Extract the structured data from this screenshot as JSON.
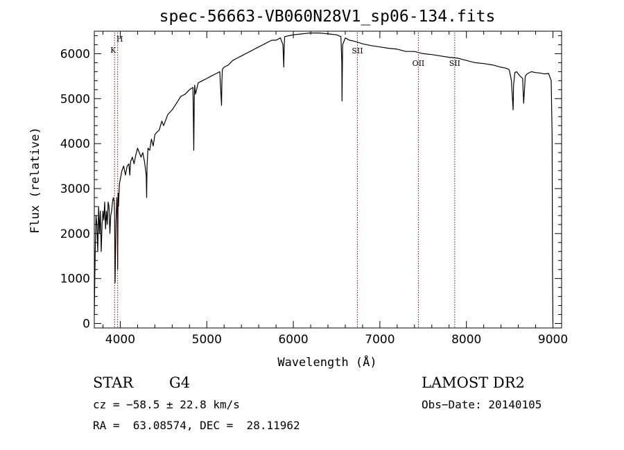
{
  "chart_data": {
    "type": "line",
    "title": "spec-56663-VB060N28V1_sp06-134.fits",
    "xlabel": "Wavelength (Å)",
    "ylabel": "Flux (relative)",
    "xlim": [
      3700,
      9100
    ],
    "ylim": [
      -100,
      6500
    ],
    "xticks": [
      4000,
      5000,
      6000,
      7000,
      8000,
      9000
    ],
    "yticks": [
      0,
      1000,
      2000,
      3000,
      4000,
      5000,
      6000
    ],
    "grid": false,
    "series": [
      {
        "x": [
          3700,
          3710,
          3720,
          3730,
          3740,
          3750,
          3760,
          3770,
          3780,
          3790,
          3800,
          3810,
          3820,
          3830,
          3840,
          3850,
          3860,
          3870,
          3880,
          3890,
          3900,
          3910,
          3920,
          3930,
          3935,
          3940,
          3950,
          3960,
          3965,
          3970,
          3975,
          3980,
          3990,
          4000,
          4020,
          4040,
          4060,
          4080,
          4100,
          4110,
          4120,
          4140,
          4160,
          4180,
          4200,
          4220,
          4240,
          4260,
          4280,
          4300,
          4305,
          4310,
          4320,
          4340,
          4360,
          4380,
          4400,
          4420,
          4450,
          4480,
          4500,
          4550,
          4600,
          4650,
          4700,
          4750,
          4800,
          4840,
          4850,
          4855,
          4860,
          4870,
          4900,
          4950,
          5000,
          5050,
          5100,
          5150,
          5170,
          5175,
          5180,
          5200,
          5250,
          5300,
          5350,
          5400,
          5450,
          5500,
          5550,
          5600,
          5650,
          5700,
          5750,
          5800,
          5850,
          5880,
          5890,
          5895,
          5900,
          5950,
          6000,
          6050,
          6100,
          6150,
          6200,
          6250,
          6300,
          6350,
          6400,
          6450,
          6500,
          6550,
          6560,
          6563,
          6570,
          6600,
          6650,
          6700,
          6750,
          6800,
          6900,
          7000,
          7100,
          7200,
          7300,
          7400,
          7500,
          7600,
          7700,
          7800,
          7900,
          8000,
          8100,
          8200,
          8300,
          8400,
          8450,
          8490,
          8500,
          8520,
          8540,
          8545,
          8560,
          8580,
          8600,
          8620,
          8650,
          8662,
          8680,
          8700,
          8750,
          8800,
          8850,
          8900,
          8950,
          8980,
          8990,
          8995,
          9000
        ],
        "values": [
          200,
          1500,
          2400,
          2200,
          1600,
          2600,
          2000,
          2500,
          1600,
          2200,
          2500,
          2300,
          2700,
          2100,
          2500,
          2200,
          2700,
          2600,
          2000,
          2400,
          2500,
          2700,
          2800,
          2700,
          2400,
          900,
          2200,
          2800,
          2500,
          1200,
          2900,
          2600,
          3100,
          3200,
          3400,
          3500,
          3300,
          3500,
          3550,
          3300,
          3600,
          3700,
          3550,
          3750,
          3900,
          3800,
          3700,
          3800,
          3600,
          3300,
          2800,
          3500,
          3900,
          3850,
          4100,
          3950,
          4200,
          4250,
          4300,
          4500,
          4400,
          4650,
          4750,
          4900,
          5050,
          5100,
          5200,
          5250,
          3850,
          5000,
          5300,
          5100,
          5350,
          5400,
          5450,
          5500,
          5550,
          5600,
          4850,
          5400,
          5650,
          5700,
          5750,
          5850,
          5900,
          5950,
          6000,
          6050,
          6100,
          6150,
          6200,
          6250,
          6300,
          6300,
          6350,
          6200,
          5700,
          6200,
          6380,
          6400,
          6420,
          6430,
          6440,
          6450,
          6460,
          6460,
          6460,
          6450,
          6440,
          6430,
          6420,
          6380,
          5800,
          4950,
          6200,
          6350,
          6300,
          6280,
          6250,
          6220,
          6180,
          6150,
          6120,
          6100,
          6050,
          6050,
          6000,
          5980,
          5950,
          5920,
          5900,
          5850,
          5800,
          5780,
          5750,
          5700,
          5680,
          5650,
          5600,
          5400,
          4750,
          5300,
          5580,
          5600,
          5550,
          5500,
          5450,
          4900,
          5500,
          5550,
          5600,
          5580,
          5570,
          5550,
          5560,
          5400,
          4200,
          1200,
          0
        ]
      }
    ],
    "line_markers": [
      {
        "label": "H",
        "x": 3970
      },
      {
        "label": "K",
        "x": 3934
      },
      {
        "label": "SII",
        "x": 6740
      },
      {
        "label": "OII",
        "x": 7445
      },
      {
        "label": "SII",
        "x": 7865
      }
    ],
    "colors": {
      "spectrum": "#000000",
      "markers": "#8b0000",
      "axes": "#000000"
    }
  },
  "info": {
    "object_type": "STAR",
    "subclass": "G4",
    "survey": "LAMOST DR2",
    "redshift": "cz = −58.5 ± 22.8 km/s",
    "obs_date": "Obs−Date: 20140105",
    "coords": "RA =  63.08574, DEC =  28.11962"
  }
}
